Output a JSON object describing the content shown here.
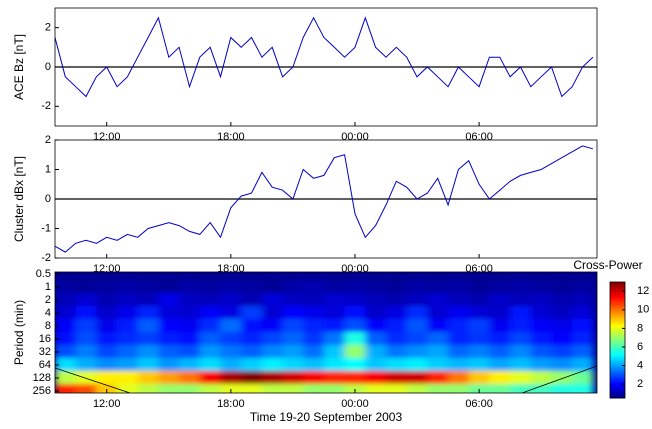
{
  "chart_data": [
    {
      "type": "line",
      "ylabel": "ACE Bz [nT]",
      "x": [
        9.5,
        10,
        10.5,
        11,
        11.5,
        12,
        12.5,
        13,
        13.5,
        14,
        14.5,
        15,
        15.5,
        16,
        16.5,
        17,
        17.5,
        18,
        18.5,
        19,
        19.5,
        20,
        20.5,
        21,
        21.5,
        22,
        22.5,
        23,
        23.5,
        24,
        24.5,
        25,
        25.5,
        26,
        26.5,
        27,
        27.5,
        28,
        28.5,
        29,
        29.5,
        30,
        30.5,
        31,
        31.5,
        32,
        32.5,
        33,
        33.5,
        34,
        34.5,
        35,
        35.5
      ],
      "xlim": [
        9.5,
        35.7
      ],
      "xticks": [
        {
          "value": 12,
          "label": "12:00"
        },
        {
          "value": 18,
          "label": "18:00"
        },
        {
          "value": 24,
          "label": "00:00"
        },
        {
          "value": 30,
          "label": "06:00"
        }
      ],
      "ylim": [
        -3,
        3
      ],
      "yticks": [
        -2,
        0,
        2
      ],
      "zero_line": true,
      "series": [
        {
          "color": "#0000c8",
          "values": [
            1.5,
            -0.5,
            -1,
            -1.5,
            -0.5,
            0,
            -1,
            -0.5,
            0.5,
            1.5,
            2.5,
            0.5,
            1,
            -1,
            0.5,
            1,
            -0.5,
            1.5,
            1,
            1.5,
            0.5,
            1,
            -0.5,
            0,
            1.5,
            2.5,
            1.5,
            1,
            0.5,
            1,
            2.5,
            1,
            0.5,
            1,
            0.5,
            -0.5,
            0,
            -0.5,
            -1,
            0,
            -0.5,
            -1,
            0.5,
            0.5,
            -0.5,
            0,
            -1,
            -0.5,
            0,
            -1.5,
            -1,
            0,
            0.5
          ]
        }
      ]
    },
    {
      "type": "line",
      "ylabel": "Cluster dBx [nT]",
      "x": [
        9.5,
        10,
        10.5,
        11,
        11.5,
        12,
        12.5,
        13,
        13.5,
        14,
        14.5,
        15,
        15.5,
        16,
        16.5,
        17,
        17.5,
        18,
        18.5,
        19,
        19.5,
        20,
        20.5,
        21,
        21.5,
        22,
        22.5,
        23,
        23.5,
        24,
        24.5,
        25,
        25.5,
        26,
        26.5,
        27,
        27.5,
        28,
        28.5,
        29,
        29.5,
        30,
        30.5,
        31,
        31.5,
        32,
        32.5,
        33,
        33.5,
        34,
        34.5,
        35,
        35.5
      ],
      "xlim": [
        9.5,
        35.7
      ],
      "xticks": [
        {
          "value": 12,
          "label": "12:00"
        },
        {
          "value": 18,
          "label": "18:00"
        },
        {
          "value": 24,
          "label": "00:00"
        },
        {
          "value": 30,
          "label": "06:00"
        }
      ],
      "ylim": [
        -2,
        2
      ],
      "yticks": [
        -2,
        -1,
        0,
        1,
        2
      ],
      "zero_line": true,
      "series": [
        {
          "color": "#0000c8",
          "values": [
            -1.6,
            -1.8,
            -1.5,
            -1.4,
            -1.5,
            -1.3,
            -1.4,
            -1.2,
            -1.3,
            -1.0,
            -0.9,
            -0.8,
            -0.9,
            -1.1,
            -1.2,
            -0.8,
            -1.3,
            -0.3,
            0.1,
            0.2,
            0.9,
            0.4,
            0.3,
            0.0,
            1.0,
            0.7,
            0.8,
            1.4,
            1.5,
            -0.5,
            -1.3,
            -0.9,
            -0.2,
            0.6,
            0.4,
            0.0,
            0.2,
            0.7,
            -0.2,
            1.0,
            1.3,
            0.5,
            0.0,
            0.3,
            0.6,
            0.8,
            0.9,
            1.0,
            1.2,
            1.4,
            1.6,
            1.8,
            1.7
          ]
        }
      ]
    },
    {
      "type": "heatmap",
      "ylabel": "Period (min)",
      "xlabel": "Time 19-20 September 2003",
      "x": [
        10,
        11,
        12,
        13,
        14,
        15,
        16,
        17,
        18,
        19,
        20,
        21,
        22,
        23,
        24,
        25,
        26,
        27,
        28,
        29,
        30,
        31,
        32,
        33,
        34,
        35
      ],
      "xlim": [
        9.5,
        35.7
      ],
      "xticks": [
        {
          "value": 12,
          "label": "12:00"
        },
        {
          "value": 18,
          "label": "18:00"
        },
        {
          "value": 24,
          "label": "00:00"
        },
        {
          "value": 30,
          "label": "06:00"
        }
      ],
      "periods": [
        0.5,
        1,
        2,
        4,
        8,
        16,
        32,
        64,
        128,
        256
      ],
      "yscale": "log",
      "y_reversed": true,
      "ylim": [
        0.45,
        285
      ],
      "yticks": [
        0.5,
        1,
        2,
        4,
        8,
        16,
        32,
        64,
        128,
        256
      ],
      "values": [
        [
          0.7,
          0.7,
          0.7,
          0.7,
          0.7,
          0.7,
          0.7,
          0.7,
          0.7,
          0.7,
          0.7,
          0.7,
          0.7,
          0.7,
          0.7,
          0.7,
          0.7,
          0.7,
          0.7,
          0.7,
          0.7,
          0.7,
          0.7,
          0.7,
          0.7,
          0.7
        ],
        [
          0.9,
          0.8,
          0.9,
          1,
          0.9,
          0.8,
          1,
          0.9,
          1,
          0.9,
          0.8,
          1,
          1.1,
          0.9,
          1,
          0.9,
          0.8,
          1,
          0.9,
          1,
          0.8,
          0.9,
          1,
          0.9,
          0.8,
          0.9
        ],
        [
          1.2,
          1.5,
          1.1,
          1.3,
          1.2,
          1.8,
          1.3,
          1.2,
          1.4,
          1.1,
          1.6,
          1.3,
          1.2,
          1.5,
          1.4,
          1.2,
          1.1,
          1.3,
          1.5,
          1.2,
          1.1,
          1.4,
          1.2,
          1.3,
          1.1,
          1.2
        ],
        [
          1.5,
          2.2,
          1.4,
          1.8,
          2.5,
          1.6,
          1.5,
          2.0,
          1.7,
          2.8,
          1.5,
          2.1,
          1.8,
          1.6,
          2.2,
          1.4,
          1.7,
          2.6,
          1.5,
          1.9,
          1.6,
          1.4,
          2.3,
          1.5,
          1.3,
          1.6
        ],
        [
          2.0,
          2.8,
          1.8,
          2.4,
          3.2,
          2.1,
          1.9,
          2.6,
          3.4,
          2.2,
          2.0,
          2.9,
          2.5,
          2.3,
          3.0,
          2.1,
          2.4,
          3.1,
          2.0,
          2.5,
          2.8,
          1.9,
          2.4,
          2.0,
          1.8,
          2.2
        ],
        [
          2.2,
          3.0,
          2.3,
          2.6,
          2.8,
          2.4,
          2.2,
          3.2,
          2.8,
          2.5,
          2.9,
          3.3,
          2.7,
          3.5,
          5.5,
          3.2,
          2.6,
          2.9,
          3.3,
          2.5,
          2.7,
          2.4,
          2.9,
          2.3,
          2.1,
          2.5
        ],
        [
          3.0,
          3.6,
          2.9,
          3.3,
          3.8,
          3.2,
          3.0,
          3.9,
          3.5,
          3.2,
          3.7,
          4.0,
          3.4,
          4.5,
          7.0,
          4.2,
          3.5,
          3.8,
          4.1,
          3.3,
          3.6,
          3.2,
          3.7,
          3.1,
          2.8,
          3.2
        ],
        [
          4.8,
          4.2,
          3.8,
          4.0,
          4.5,
          3.9,
          4.3,
          4.8,
          4.2,
          4.6,
          5.0,
          4.7,
          4.4,
          4.9,
          5.2,
          4.5,
          4.8,
          5.0,
          4.6,
          4.3,
          4.5,
          4.1,
          4.4,
          4.0,
          3.8,
          4.2
        ],
        [
          7.5,
          8,
          8.5,
          8.5,
          9,
          9.5,
          10,
          11.5,
          12.5,
          13,
          12.5,
          12,
          11.5,
          11,
          11,
          11.5,
          12,
          12,
          11,
          10,
          9,
          8.5,
          8,
          7.5,
          7,
          6.5
        ],
        [
          11,
          10.5,
          9,
          8,
          7.5,
          7,
          7,
          7.5,
          8,
          8,
          7.5,
          7.5,
          7,
          7,
          7.5,
          8,
          8,
          7.5,
          7,
          7,
          6.5,
          6.5,
          6,
          6,
          5.5,
          5.5
        ]
      ],
      "colorbar": {
        "title": "Cross-Power",
        "colormap": "jet",
        "clim": [
          0.5,
          13
        ],
        "ticks": [
          2,
          4,
          6,
          8,
          10,
          12
        ]
      }
    }
  ]
}
